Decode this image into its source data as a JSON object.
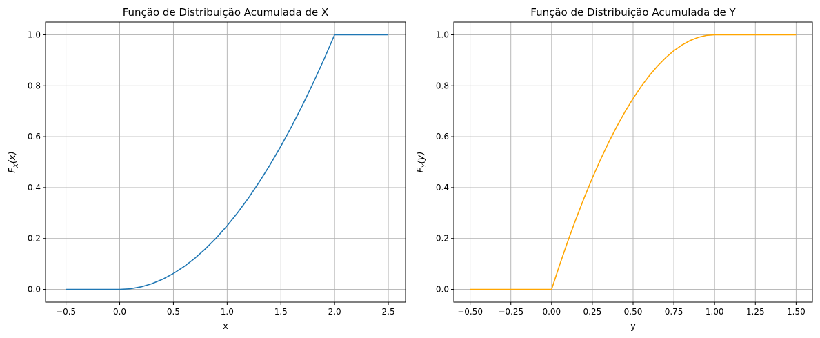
{
  "chart_data": [
    {
      "type": "line",
      "title": "Função de Distribuição Acumulada de X",
      "xlabel": "x",
      "ylabel": {
        "base": "F",
        "sub": "X",
        "arg": "(x)"
      },
      "xlim": [
        -0.69,
        2.66
      ],
      "ylim": [
        -0.05,
        1.05
      ],
      "xticks": [
        -0.5,
        0.0,
        0.5,
        1.0,
        1.5,
        2.0,
        2.5
      ],
      "xtick_labels": [
        "−0.5",
        "0.0",
        "0.5",
        "1.0",
        "1.5",
        "2.0",
        "2.5"
      ],
      "yticks": [
        0.0,
        0.2,
        0.4,
        0.6,
        0.8,
        1.0
      ],
      "ytick_labels": [
        "0.0",
        "0.2",
        "0.4",
        "0.6",
        "0.8",
        "1.0"
      ],
      "grid": true,
      "color": "#1f77b4",
      "x": [
        -0.5,
        0.0,
        0.1,
        0.2,
        0.3,
        0.4,
        0.5,
        0.6,
        0.7,
        0.8,
        0.9,
        1.0,
        1.1,
        1.2,
        1.3,
        1.4,
        1.5,
        1.6,
        1.7,
        1.8,
        1.9,
        2.0,
        2.5
      ],
      "y": [
        0.0,
        0.0,
        0.0025,
        0.01,
        0.0225,
        0.04,
        0.0625,
        0.09,
        0.1225,
        0.16,
        0.2025,
        0.25,
        0.3025,
        0.36,
        0.4225,
        0.49,
        0.5625,
        0.64,
        0.7225,
        0.81,
        0.9025,
        1.0,
        1.0
      ]
    },
    {
      "type": "line",
      "title": "Função de Distribuição Acumulada de Y",
      "xlabel": "y",
      "ylabel": {
        "base": "F",
        "sub": "Y",
        "arg": "(y)"
      },
      "xlim": [
        -0.6,
        1.6
      ],
      "ylim": [
        -0.05,
        1.05
      ],
      "xticks": [
        -0.5,
        -0.25,
        0.0,
        0.25,
        0.5,
        0.75,
        1.0,
        1.25,
        1.5
      ],
      "xtick_labels": [
        "−0.50",
        "−0.25",
        "0.00",
        "0.25",
        "0.50",
        "0.75",
        "1.00",
        "1.25",
        "1.50"
      ],
      "yticks": [
        0.0,
        0.2,
        0.4,
        0.6,
        0.8,
        1.0
      ],
      "ytick_labels": [
        "0.0",
        "0.2",
        "0.4",
        "0.6",
        "0.8",
        "1.0"
      ],
      "grid": true,
      "color": "#ffa500",
      "x": [
        -0.5,
        0.0,
        0.05,
        0.1,
        0.15,
        0.2,
        0.25,
        0.3,
        0.35,
        0.4,
        0.45,
        0.5,
        0.55,
        0.6,
        0.65,
        0.7,
        0.75,
        0.8,
        0.85,
        0.9,
        0.95,
        1.0,
        1.5
      ],
      "y": [
        0.0,
        0.0,
        0.0975,
        0.19,
        0.2775,
        0.36,
        0.4375,
        0.51,
        0.5775,
        0.64,
        0.6975,
        0.75,
        0.7975,
        0.84,
        0.8775,
        0.91,
        0.9375,
        0.96,
        0.9775,
        0.99,
        0.9975,
        1.0,
        1.0
      ]
    }
  ]
}
